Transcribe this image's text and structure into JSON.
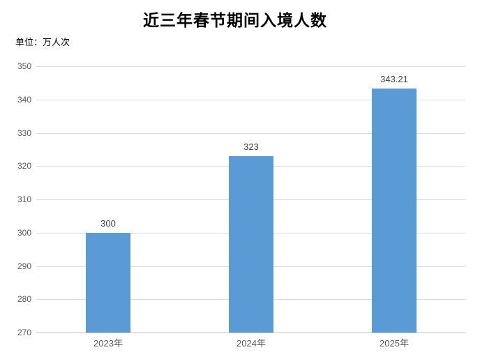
{
  "page": {
    "title": "近三年春节期间入境人数",
    "unit_label": "单位：万人次"
  },
  "chart_data": {
    "type": "bar",
    "title": "近三年春节期间入境人数",
    "unit": "万人次",
    "categories": [
      "2023年",
      "2024年",
      "2025年"
    ],
    "values": [
      300,
      323,
      343.21
    ],
    "data_labels": [
      "300",
      "323",
      "343.21"
    ],
    "ylim": [
      270,
      350
    ],
    "ytick_step": 10,
    "ytick_labels": [
      "270",
      "280",
      "290",
      "300",
      "310",
      "320",
      "330",
      "340",
      "350"
    ],
    "xlabel": "",
    "ylabel": "",
    "grid": true,
    "legend": "none",
    "colors": {
      "bar": "#5B9BD5",
      "gridline": "#DCDCDC",
      "axis_line": "#C0C0C0",
      "tick_label": "#595959",
      "data_label": "#404040",
      "title": "#000000",
      "background": "#FFFFFF"
    }
  }
}
